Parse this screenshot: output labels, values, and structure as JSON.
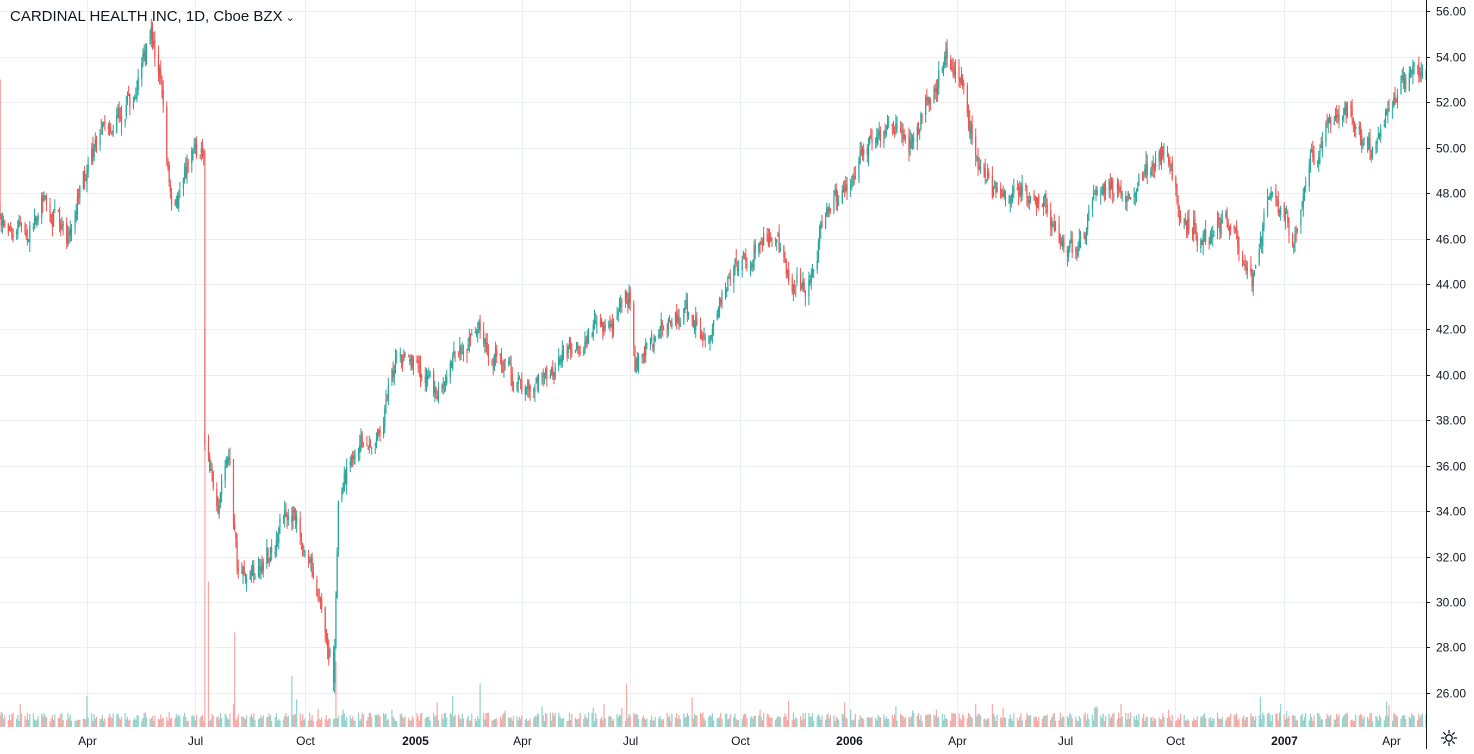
{
  "header": {
    "title": "CARDINAL HEALTH INC, 1D, Cboe BZX",
    "dropdown_icon": "chevron-down-icon"
  },
  "colors": {
    "up": "#26a69a",
    "down": "#ef5350",
    "up_volume": "#8fd3cb",
    "down_volume": "#f7a7a4",
    "grid": "#ebeef3",
    "axis": "#131722"
  },
  "settings_icon": "gear-icon",
  "chart_data": {
    "type": "candlestick",
    "price_range": [
      24.5,
      56.5
    ],
    "y_ticks": [
      "56.00",
      "54.00",
      "52.00",
      "50.00",
      "48.00",
      "46.00",
      "44.00",
      "42.00",
      "40.00",
      "38.00",
      "36.00",
      "34.00",
      "32.00",
      "30.00",
      "28.00",
      "26.00"
    ],
    "x_ticks": [
      {
        "label": "Apr",
        "date": "2004-04-01",
        "bold": false
      },
      {
        "label": "Jul",
        "date": "2004-07-01",
        "bold": false
      },
      {
        "label": "Oct",
        "date": "2004-10-01",
        "bold": false
      },
      {
        "label": "2005",
        "date": "2005-01-01",
        "bold": true
      },
      {
        "label": "Apr",
        "date": "2005-04-01",
        "bold": false
      },
      {
        "label": "Jul",
        "date": "2005-07-01",
        "bold": false
      },
      {
        "label": "Oct",
        "date": "2005-10-01",
        "bold": false
      },
      {
        "label": "2006",
        "date": "2006-01-01",
        "bold": true
      },
      {
        "label": "Apr",
        "date": "2006-04-01",
        "bold": false
      },
      {
        "label": "Jul",
        "date": "2006-07-01",
        "bold": false
      },
      {
        "label": "Oct",
        "date": "2006-10-01",
        "bold": false
      },
      {
        "label": "2007",
        "date": "2007-01-01",
        "bold": true
      },
      {
        "label": "Apr",
        "date": "2007-04-01",
        "bold": false
      }
    ],
    "date_range": [
      "2004-01-19",
      "2007-04-30"
    ],
    "price_path": [
      [
        "2004-01-19",
        46.8
      ],
      [
        "2004-02-10",
        46.2
      ],
      [
        "2004-02-25",
        47.9
      ],
      [
        "2004-03-15",
        46.0
      ],
      [
        "2004-03-22",
        47.5
      ],
      [
        "2004-04-05",
        49.5
      ],
      [
        "2004-04-20",
        51.0
      ],
      [
        "2004-05-10",
        52.0
      ],
      [
        "2004-05-25",
        54.7
      ],
      [
        "2004-06-04",
        52.5
      ],
      [
        "2004-06-10",
        48.0
      ],
      [
        "2004-06-15",
        47.4
      ],
      [
        "2004-06-25",
        49.2
      ],
      [
        "2004-07-08",
        50.2
      ],
      [
        "2004-07-09",
        37.5
      ],
      [
        "2004-07-20",
        34.2
      ],
      [
        "2004-07-30",
        36.5
      ],
      [
        "2004-08-05",
        31.8
      ],
      [
        "2004-08-25",
        31.2
      ],
      [
        "2004-09-05",
        32.5
      ],
      [
        "2004-09-18",
        34.5
      ],
      [
        "2004-10-01",
        32.8
      ],
      [
        "2004-10-15",
        29.0
      ],
      [
        "2004-10-25",
        26.8
      ],
      [
        "2004-10-29",
        34.0
      ],
      [
        "2004-11-10",
        36.8
      ],
      [
        "2004-11-30",
        37.5
      ],
      [
        "2004-12-20",
        41.0
      ],
      [
        "2005-01-05",
        40.2
      ],
      [
        "2005-01-20",
        38.8
      ],
      [
        "2005-02-05",
        41.0
      ],
      [
        "2005-02-25",
        42.0
      ],
      [
        "2005-03-20",
        40.0
      ],
      [
        "2005-04-05",
        39.0
      ],
      [
        "2005-04-25",
        40.2
      ],
      [
        "2005-05-10",
        40.8
      ],
      [
        "2005-05-25",
        42.0
      ],
      [
        "2005-06-15",
        41.8
      ],
      [
        "2005-06-30",
        43.5
      ],
      [
        "2005-07-05",
        40.5
      ],
      [
        "2005-07-25",
        42.0
      ],
      [
        "2005-08-15",
        42.8
      ],
      [
        "2005-09-05",
        42.0
      ],
      [
        "2005-09-25",
        45.0
      ],
      [
        "2005-10-15",
        45.5
      ],
      [
        "2005-10-30",
        46.3
      ],
      [
        "2005-11-10",
        44.2
      ],
      [
        "2005-11-25",
        44.0
      ],
      [
        "2005-12-15",
        47.5
      ],
      [
        "2006-01-10",
        49.5
      ],
      [
        "2006-02-01",
        51.0
      ],
      [
        "2006-02-20",
        50.0
      ],
      [
        "2006-03-10",
        52.5
      ],
      [
        "2006-03-25",
        54.0
      ],
      [
        "2006-04-05",
        53.0
      ],
      [
        "2006-04-20",
        49.5
      ],
      [
        "2006-05-01",
        48.0
      ],
      [
        "2006-05-25",
        48.2
      ],
      [
        "2006-06-15",
        47.5
      ],
      [
        "2006-07-01",
        45.2
      ],
      [
        "2006-07-15",
        45.8
      ],
      [
        "2006-07-30",
        48.5
      ],
      [
        "2006-08-20",
        48.0
      ],
      [
        "2006-09-10",
        49.0
      ],
      [
        "2006-09-25",
        50.3
      ],
      [
        "2006-10-05",
        47.5
      ],
      [
        "2006-10-25",
        46.0
      ],
      [
        "2006-11-15",
        46.5
      ],
      [
        "2006-12-05",
        44.2
      ],
      [
        "2006-12-20",
        47.8
      ],
      [
        "2007-01-10",
        46.0
      ],
      [
        "2007-01-25",
        49.5
      ],
      [
        "2007-02-10",
        51.5
      ],
      [
        "2007-03-01",
        51.5
      ],
      [
        "2007-03-15",
        50.0
      ],
      [
        "2007-04-01",
        52.0
      ],
      [
        "2007-04-20",
        53.5
      ],
      [
        "2007-04-30",
        53.3
      ]
    ],
    "volume_spikes": [
      {
        "date": "2004-07-09",
        "fraction": 0.55,
        "dir": "down"
      },
      {
        "date": "2004-07-12",
        "fraction": 0.2,
        "dir": "down"
      },
      {
        "date": "2004-08-03",
        "fraction": 0.13,
        "dir": "down"
      },
      {
        "date": "2004-09-20",
        "fraction": 0.07,
        "dir": "up"
      },
      {
        "date": "2004-10-27",
        "fraction": 0.09,
        "dir": "down"
      },
      {
        "date": "2005-02-25",
        "fraction": 0.06,
        "dir": "up"
      },
      {
        "date": "2005-06-28",
        "fraction": 0.06,
        "dir": "down"
      }
    ]
  }
}
